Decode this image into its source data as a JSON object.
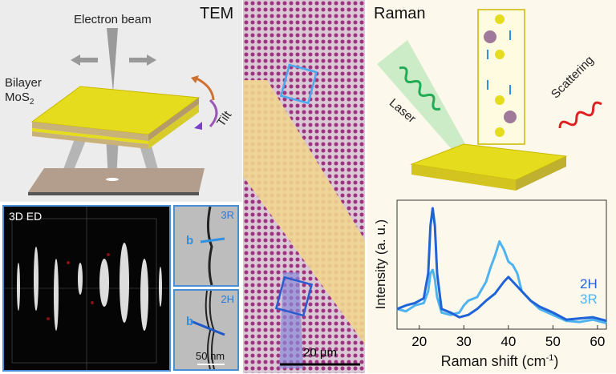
{
  "tem": {
    "title": "TEM",
    "beam_label": "Electron beam",
    "sample_label_line1": "Bilayer",
    "sample_label_line2": "MoS",
    "sample_subscript": "2",
    "tilt_label": "Tilt"
  },
  "ed": {
    "label": "3D ED"
  },
  "hrtem": [
    {
      "phase": "3R",
      "vector": "b"
    },
    {
      "phase": "2H",
      "vector": "b",
      "scale_bar": "50 nm"
    }
  ],
  "optical": {
    "scale_bar": "20 µm"
  },
  "raman": {
    "title": "Raman",
    "laser_label": "Laser",
    "scattering_label": "Scattering"
  },
  "colors": {
    "2H": "#1f63d6",
    "3R": "#4fb3f0",
    "laser": "#22aa55",
    "scattering": "#e02020",
    "mos2": "#e6dc1e"
  },
  "chart_data": {
    "type": "line",
    "xlabel": "Raman shift (cm",
    "xlabel_sup": "-1",
    "xlabel_end": ")",
    "ylabel": "Intensity (a. u.)",
    "xlim": [
      15,
      62
    ],
    "ylim": [
      0,
      1
    ],
    "xticks": [
      "20",
      "30",
      "40",
      "50",
      "60"
    ],
    "grid": false,
    "legend": "right",
    "series": [
      {
        "name": "2H",
        "x": [
          15,
          17,
          19,
          21,
          22,
          22.5,
          23,
          23.5,
          24,
          25,
          27,
          29,
          31,
          33,
          35,
          37,
          38,
          39,
          40,
          41,
          43,
          45,
          47,
          50,
          53,
          56,
          59,
          62
        ],
        "y": [
          0.15,
          0.18,
          0.2,
          0.24,
          0.45,
          0.85,
          1.0,
          0.85,
          0.45,
          0.15,
          0.12,
          0.08,
          0.1,
          0.15,
          0.22,
          0.28,
          0.33,
          0.38,
          0.42,
          0.38,
          0.3,
          0.22,
          0.17,
          0.12,
          0.06,
          0.07,
          0.08,
          0.05
        ]
      },
      {
        "name": "3R",
        "x": [
          15,
          17,
          19,
          21,
          22,
          22.5,
          23,
          23.5,
          24,
          25,
          27,
          29,
          30,
          31,
          33,
          35,
          36,
          37,
          38,
          39,
          40,
          41,
          42,
          43,
          45,
          47,
          50,
          53,
          56,
          59,
          62
        ],
        "y": [
          0.15,
          0.13,
          0.18,
          0.2,
          0.3,
          0.45,
          0.48,
          0.4,
          0.25,
          0.12,
          0.1,
          0.12,
          0.18,
          0.22,
          0.25,
          0.38,
          0.5,
          0.6,
          0.72,
          0.65,
          0.55,
          0.52,
          0.45,
          0.3,
          0.22,
          0.15,
          0.1,
          0.05,
          0.04,
          0.06,
          0.03
        ]
      }
    ]
  }
}
